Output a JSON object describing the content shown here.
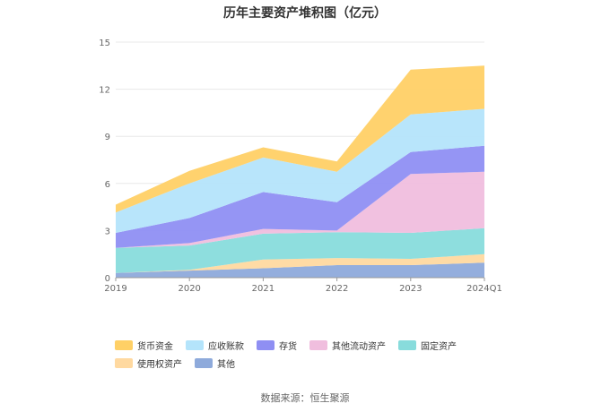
{
  "chart_data": {
    "type": "area",
    "stacked": true,
    "title": "历年主要资产堆积图（亿元）",
    "x": [
      "2019",
      "2020",
      "2021",
      "2022",
      "2023",
      "2024Q1"
    ],
    "y_ticks": [
      0,
      3,
      6,
      9,
      12,
      15
    ],
    "ylim": [
      0,
      15
    ],
    "grid": true,
    "legend_position": "bottom",
    "series": [
      {
        "name": "其他",
        "color": "#8eaadb",
        "values": [
          0.3,
          0.45,
          0.6,
          0.8,
          0.8,
          0.95
        ]
      },
      {
        "name": "使用权资产",
        "color": "#ffd9a0",
        "values": [
          0.0,
          0.05,
          0.55,
          0.45,
          0.4,
          0.55
        ]
      },
      {
        "name": "固定资产",
        "color": "#88dcdc",
        "values": [
          1.6,
          1.55,
          1.65,
          1.65,
          1.65,
          1.65
        ]
      },
      {
        "name": "其他流动资产",
        "color": "#f0bede",
        "values": [
          0.0,
          0.15,
          0.3,
          0.1,
          3.75,
          3.6
        ]
      },
      {
        "name": "存货",
        "color": "#8f8ff3",
        "values": [
          0.95,
          1.6,
          2.35,
          1.8,
          1.4,
          1.65
        ]
      },
      {
        "name": "应收账款",
        "color": "#b4e4fb",
        "values": [
          1.3,
          2.2,
          2.2,
          1.95,
          2.4,
          2.35
        ]
      },
      {
        "name": "货币资金",
        "color": "#ffd066",
        "values": [
          0.5,
          0.8,
          0.65,
          0.65,
          2.85,
          2.75
        ]
      }
    ],
    "legend_order": [
      "货币资金",
      "应收账款",
      "存货",
      "其他流动资产",
      "固定资产",
      "使用权资产",
      "其他"
    ]
  },
  "source_text": "数据来源：恒生聚源"
}
